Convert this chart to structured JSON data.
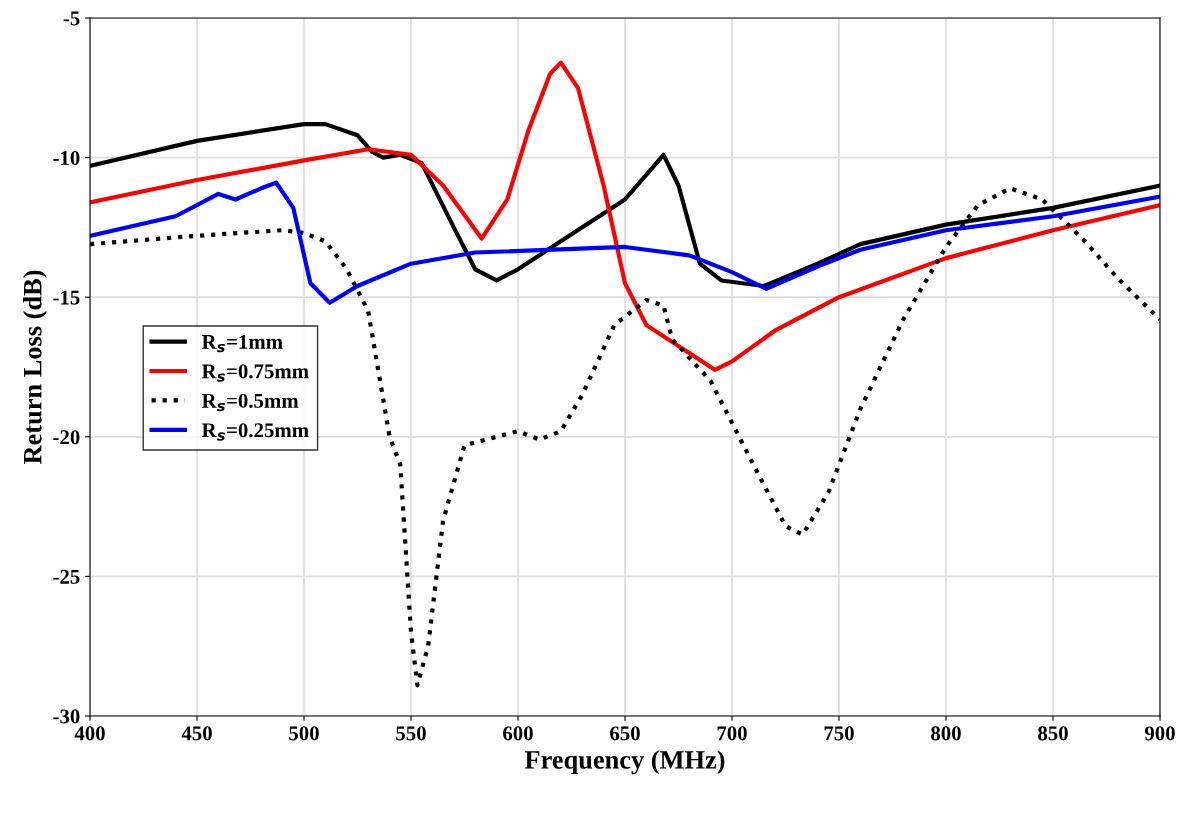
{
  "chart_data": {
    "type": "line",
    "xlabel": "Frequency (MHz)",
    "ylabel": "Return Loss (dB)",
    "xlim": [
      400,
      900
    ],
    "ylim": [
      -30,
      -5
    ],
    "xticks": [
      400,
      450,
      500,
      550,
      600,
      650,
      700,
      750,
      800,
      850,
      900
    ],
    "yticks": [
      -30,
      -25,
      -20,
      -15,
      -10,
      -5
    ],
    "grid": true,
    "legend": "center left",
    "series": [
      {
        "name": "R$_{s}$=1mm",
        "color": "#000000",
        "line_style": "solid",
        "x": [
          400,
          450,
          500,
          510,
          525,
          532,
          537,
          545,
          555,
          570,
          580,
          590,
          600,
          620,
          650,
          668,
          675,
          685,
          695,
          715,
          740,
          760,
          800,
          850,
          900
        ],
        "values": [
          -10.3,
          -9.4,
          -8.8,
          -8.8,
          -9.2,
          -9.8,
          -10,
          -9.9,
          -10.2,
          -12.5,
          -14,
          -14.4,
          -14,
          -13,
          -11.5,
          -9.9,
          -11,
          -13.8,
          -14.4,
          -14.6,
          -13.8,
          -13.1,
          -12.4,
          -11.8,
          -11.0
        ]
      },
      {
        "name": "R$_{s}$=0.75mm",
        "color": "#ff0000",
        "line_style": "solid",
        "x": [
          400,
          450,
          500,
          530,
          550,
          565,
          583,
          595,
          605,
          615,
          620,
          628,
          640,
          650,
          660,
          680,
          692,
          700,
          720,
          750,
          800,
          850,
          900
        ],
        "values": [
          -11.6,
          -10.8,
          -10.1,
          -9.7,
          -9.9,
          -11,
          -12.9,
          -11.5,
          -9,
          -7,
          -6.6,
          -7.5,
          -11,
          -14.5,
          -16,
          -17,
          -17.6,
          -17.3,
          -16.2,
          -15,
          -13.6,
          -12.6,
          -11.7
        ]
      },
      {
        "name": "R$_{s}$=0.5mm",
        "color": "#000000",
        "line_style": "dotted",
        "x": [
          400,
          450,
          490,
          500,
          510,
          520,
          530,
          540,
          545,
          550,
          553,
          558,
          565,
          575,
          590,
          600,
          610,
          620,
          630,
          645,
          660,
          668,
          672,
          690,
          710,
          725,
          733,
          745,
          760,
          780,
          800,
          815,
          830,
          845,
          865,
          880,
          900
        ],
        "values": [
          -13.1,
          -12.8,
          -12.6,
          -12.7,
          -13,
          -14,
          -15.5,
          -20,
          -21,
          -27,
          -28.9,
          -27.5,
          -23,
          -20.3,
          -20,
          -19.8,
          -20.1,
          -19.8,
          -18.5,
          -16,
          -15.1,
          -15.3,
          -16.5,
          -18,
          -21,
          -23.2,
          -23.5,
          -22,
          -19,
          -15.8,
          -13.2,
          -11.7,
          -11.1,
          -11.5,
          -13,
          -14.3,
          -15.8
        ]
      },
      {
        "name": "R$_{s}$=0.25mm",
        "color": "#0000ff",
        "line_style": "solid",
        "x": [
          400,
          440,
          460,
          468,
          480,
          487,
          495,
          503,
          512,
          525,
          550,
          580,
          650,
          680,
          700,
          716,
          740,
          760,
          800,
          850,
          900
        ],
        "values": [
          -12.8,
          -12.1,
          -11.3,
          -11.5,
          -11.1,
          -10.9,
          -11.8,
          -14.5,
          -15.2,
          -14.6,
          -13.8,
          -13.4,
          -13.2,
          -13.5,
          -14.1,
          -14.7,
          -13.9,
          -13.3,
          -12.6,
          -12.1,
          -11.4
        ]
      }
    ]
  }
}
